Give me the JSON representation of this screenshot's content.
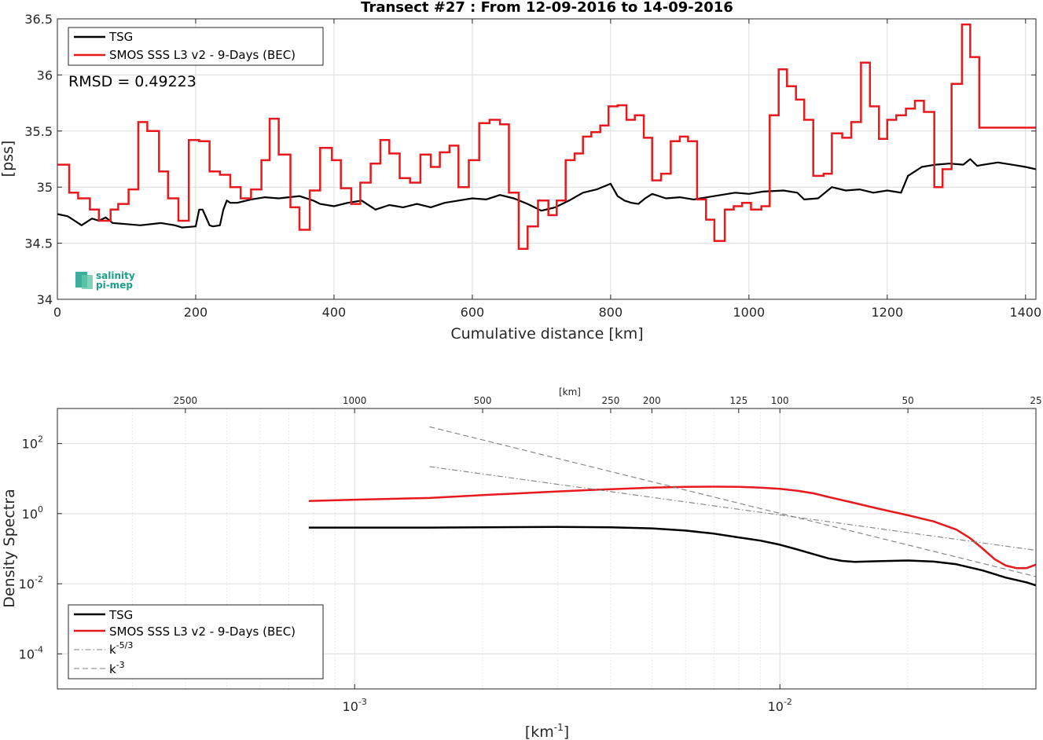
{
  "colors": {
    "tsg": "#000000",
    "smos": "#e8191c",
    "ref": "#808080"
  },
  "logo": {
    "line1": "salinity",
    "line2": "pi-mep",
    "color": "#1aa089"
  },
  "chart_data": [
    {
      "type": "line",
      "title": "Transect #27 : From 12-09-2016 to 14-09-2016",
      "xlabel": "Cumulative distance [km]",
      "ylabel": "[pss]",
      "xlim": [
        0,
        1415
      ],
      "ylim": [
        34,
        36.5
      ],
      "xticks": [
        0,
        200,
        400,
        600,
        800,
        1000,
        1200,
        1400
      ],
      "yticks": [
        34,
        34.5,
        35,
        35.5,
        36,
        36.5
      ],
      "xtick_labels": [
        "0",
        "200",
        "400",
        "600",
        "800",
        "1000",
        "1200",
        "1400"
      ],
      "ytick_labels": [
        "34",
        "34.5",
        "35",
        "35.5",
        "36",
        "36.5"
      ],
      "grid": true,
      "legend_position": "top-left",
      "annotation": "RMSD = 0.49223",
      "series": [
        {
          "name": "TSG",
          "x": [
            0,
            15,
            25,
            35,
            50,
            60,
            70,
            80,
            100,
            120,
            150,
            170,
            180,
            200,
            205,
            210,
            220,
            225,
            235,
            240,
            245,
            250,
            260,
            280,
            300,
            320,
            350,
            370,
            380,
            400,
            420,
            440,
            460,
            480,
            500,
            520,
            540,
            560,
            580,
            600,
            620,
            640,
            660,
            680,
            700,
            720,
            740,
            760,
            780,
            800,
            810,
            820,
            830,
            840,
            850,
            860,
            880,
            900,
            920,
            950,
            980,
            1000,
            1020,
            1050,
            1070,
            1080,
            1100,
            1120,
            1140,
            1160,
            1180,
            1200,
            1220,
            1230,
            1250,
            1270,
            1290,
            1310,
            1320,
            1330,
            1340,
            1360,
            1380,
            1400,
            1415
          ],
          "values": [
            34.76,
            34.74,
            34.7,
            34.66,
            34.72,
            34.7,
            34.73,
            34.68,
            34.67,
            34.66,
            34.68,
            34.66,
            34.64,
            34.65,
            34.8,
            34.8,
            34.66,
            34.65,
            34.66,
            34.8,
            34.88,
            34.86,
            34.86,
            34.89,
            34.91,
            34.9,
            34.92,
            34.88,
            34.85,
            34.83,
            34.86,
            34.88,
            34.8,
            34.84,
            34.82,
            34.85,
            34.82,
            34.86,
            34.88,
            34.9,
            34.89,
            34.93,
            34.9,
            34.85,
            34.79,
            34.82,
            34.88,
            34.95,
            34.98,
            35.03,
            34.92,
            34.88,
            34.86,
            34.85,
            34.9,
            34.94,
            34.9,
            34.91,
            34.89,
            34.92,
            34.95,
            34.94,
            34.96,
            34.97,
            34.95,
            34.89,
            34.9,
            35.0,
            34.97,
            34.98,
            34.95,
            34.97,
            34.95,
            35.1,
            35.18,
            35.2,
            35.21,
            35.2,
            35.25,
            35.19,
            35.2,
            35.22,
            35.2,
            35.18,
            35.16
          ]
        },
        {
          "name": "SMOS SSS L3 v2 - 9-Days (BEC)",
          "x": [
            0,
            17,
            30,
            47,
            60,
            77,
            88,
            103,
            117,
            130,
            147,
            160,
            175,
            190,
            205,
            220,
            235,
            250,
            265,
            280,
            295,
            307,
            320,
            337,
            350,
            365,
            380,
            397,
            410,
            425,
            438,
            453,
            467,
            480,
            495,
            510,
            525,
            540,
            553,
            567,
            580,
            595,
            610,
            625,
            640,
            653,
            667,
            680,
            695,
            710,
            722,
            735,
            748,
            760,
            772,
            785,
            797,
            810,
            823,
            835,
            848,
            860,
            873,
            887,
            900,
            912,
            925,
            938,
            950,
            965,
            978,
            990,
            1003,
            1018,
            1030,
            1043,
            1055,
            1068,
            1080,
            1093,
            1108,
            1120,
            1135,
            1148,
            1162,
            1175,
            1188,
            1200,
            1213,
            1227,
            1240,
            1253,
            1268,
            1280,
            1293,
            1308,
            1320,
            1333,
            1345,
            1358,
            1373,
            1385,
            1398,
            1415
          ],
          "values": [
            35.2,
            34.95,
            34.9,
            34.8,
            34.7,
            34.8,
            34.85,
            34.98,
            35.58,
            35.5,
            35.14,
            34.9,
            34.7,
            35.42,
            35.41,
            35.14,
            35.11,
            35.0,
            34.9,
            34.98,
            35.24,
            35.61,
            35.29,
            34.82,
            34.62,
            34.97,
            35.35,
            35.24,
            34.99,
            34.85,
            35.04,
            35.21,
            35.42,
            35.3,
            35.08,
            35.04,
            35.29,
            35.18,
            35.31,
            35.37,
            35.0,
            35.24,
            35.57,
            35.6,
            35.56,
            34.95,
            34.45,
            34.65,
            34.88,
            34.75,
            34.88,
            35.24,
            35.3,
            35.45,
            35.49,
            35.55,
            35.72,
            35.73,
            35.6,
            35.64,
            35.44,
            35.06,
            35.12,
            35.41,
            35.45,
            35.41,
            34.89,
            34.71,
            34.52,
            34.8,
            34.83,
            34.86,
            34.8,
            34.83,
            35.64,
            36.05,
            35.9,
            35.78,
            35.6,
            35.1,
            35.12,
            35.48,
            35.44,
            35.58,
            36.11,
            35.72,
            35.43,
            35.6,
            35.64,
            35.7,
            35.77,
            35.67,
            35.0,
            35.16,
            35.92,
            36.45,
            36.16,
            35.53,
            35.53,
            35.53,
            35.53,
            35.53,
            35.53,
            35.53
          ]
        }
      ]
    },
    {
      "type": "line",
      "title": "",
      "xlabel": "[km",
      "xlabel_sup": "-1",
      "xlabel_end": "]",
      "ylabel": "Density Spectra",
      "xscale": "log",
      "yscale": "log",
      "xlim": [
        0.0002,
        0.04
      ],
      "ylim": [
        1e-05,
        1000
      ],
      "xticks": [
        0.001,
        0.01
      ],
      "xtick_base": [
        "10",
        "10"
      ],
      "xtick_exp": [
        "-3",
        "-2"
      ],
      "yticks": [
        0.0001,
        0.01,
        1,
        100
      ],
      "ytick_base": [
        "10",
        "10",
        "10",
        "10"
      ],
      "ytick_exp": [
        "-4",
        "-2",
        "0",
        "2"
      ],
      "top_axis_label": "[km]",
      "top_ticks_km": [
        2500,
        1000,
        500,
        250,
        200,
        125,
        100,
        50,
        25
      ],
      "top_tick_labels": [
        "2500",
        "1000",
        "500",
        "250",
        "200",
        "125",
        "100",
        "50",
        "25"
      ],
      "grid": true,
      "legend_position": "bottom-left",
      "series": [
        {
          "name": "TSG",
          "x": [
            0.00078,
            0.001,
            0.0015,
            0.002,
            0.003,
            0.004,
            0.005,
            0.006,
            0.007,
            0.008,
            0.009,
            0.01,
            0.011,
            0.012,
            0.013,
            0.014,
            0.015,
            0.017,
            0.02,
            0.023,
            0.026,
            0.03,
            0.034,
            0.038,
            0.04
          ],
          "values": [
            0.4,
            0.4,
            0.4,
            0.41,
            0.42,
            0.41,
            0.38,
            0.33,
            0.27,
            0.21,
            0.17,
            0.13,
            0.095,
            0.07,
            0.053,
            0.045,
            0.042,
            0.044,
            0.046,
            0.043,
            0.036,
            0.024,
            0.015,
            0.011,
            0.009
          ]
        },
        {
          "name": "SMOS SSS L3 v2 - 9-Days (BEC)",
          "x": [
            0.00078,
            0.001,
            0.0015,
            0.002,
            0.003,
            0.004,
            0.005,
            0.006,
            0.007,
            0.008,
            0.009,
            0.01,
            0.011,
            0.012,
            0.013,
            0.015,
            0.017,
            0.02,
            0.023,
            0.026,
            0.028,
            0.03,
            0.032,
            0.034,
            0.036,
            0.038,
            0.04
          ],
          "values": [
            2.3,
            2.5,
            2.8,
            3.4,
            4.3,
            5.0,
            5.5,
            5.8,
            5.9,
            5.8,
            5.5,
            5.1,
            4.5,
            3.8,
            3.0,
            2.0,
            1.4,
            0.9,
            0.6,
            0.35,
            0.2,
            0.1,
            0.05,
            0.033,
            0.028,
            0.028,
            0.035
          ]
        },
        {
          "name": "k^-5/3",
          "legend_base": "k",
          "legend_exp": "-5/3",
          "dash": "dashdot",
          "x": [
            0.0015,
            0.04
          ],
          "values": [
            22,
            0.09
          ]
        },
        {
          "name": "k^-3",
          "legend_base": "k",
          "legend_exp": "-3",
          "dash": "dashed",
          "x": [
            0.0015,
            0.04
          ],
          "values": [
            300,
            0.016
          ]
        }
      ]
    }
  ]
}
